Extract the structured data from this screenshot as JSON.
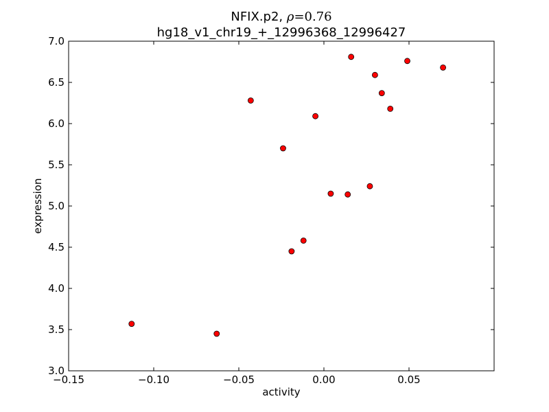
{
  "chart_data": {
    "type": "scatter",
    "title_prefix": "NFIX.p2, ",
    "title_rho_symbol": "ρ",
    "title_rho_value": "=0.76",
    "subtitle": "hg18_v1_chr19_+_12996368_12996427",
    "xlabel": "activity",
    "ylabel": "expression",
    "xlim": [
      -0.15,
      0.1
    ],
    "ylim": [
      3.0,
      7.0
    ],
    "x_ticks": [
      -0.15,
      -0.1,
      -0.05,
      0.0,
      0.05
    ],
    "x_tick_labels": [
      "−0.15",
      "−0.10",
      "−0.05",
      "0.00",
      "0.05"
    ],
    "y_ticks": [
      3.0,
      3.5,
      4.0,
      4.5,
      5.0,
      5.5,
      6.0,
      6.5,
      7.0
    ],
    "y_tick_labels": [
      "3.0",
      "3.5",
      "4.0",
      "4.5",
      "5.0",
      "5.5",
      "6.0",
      "6.5",
      "7.0"
    ],
    "grid": false,
    "marker_color": "#ff0000",
    "marker_edge": "#000000",
    "points": [
      {
        "x": -0.113,
        "y": 3.57
      },
      {
        "x": -0.063,
        "y": 3.45
      },
      {
        "x": -0.043,
        "y": 6.28
      },
      {
        "x": -0.024,
        "y": 5.7
      },
      {
        "x": -0.019,
        "y": 4.45
      },
      {
        "x": -0.012,
        "y": 4.58
      },
      {
        "x": -0.005,
        "y": 6.09
      },
      {
        "x": 0.004,
        "y": 5.15
      },
      {
        "x": 0.014,
        "y": 5.14
      },
      {
        "x": 0.016,
        "y": 6.81
      },
      {
        "x": 0.027,
        "y": 5.24
      },
      {
        "x": 0.03,
        "y": 6.59
      },
      {
        "x": 0.034,
        "y": 6.37
      },
      {
        "x": 0.039,
        "y": 6.18
      },
      {
        "x": 0.049,
        "y": 6.76
      },
      {
        "x": 0.07,
        "y": 6.68
      }
    ]
  }
}
